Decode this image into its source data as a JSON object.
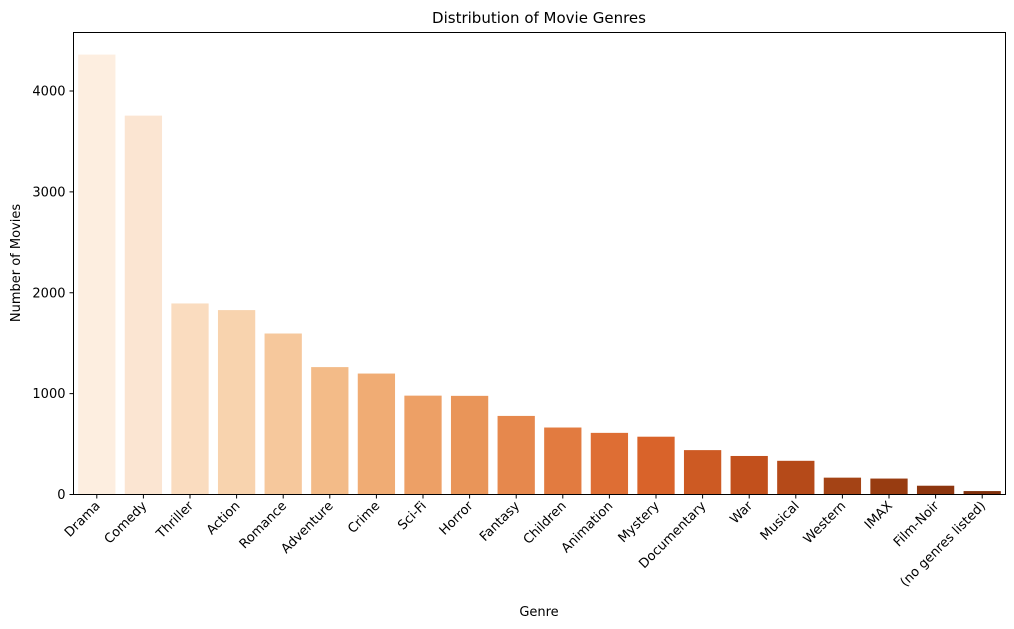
{
  "chart_data": {
    "type": "bar",
    "title": "Distribution of Movie Genres",
    "xlabel": "Genre",
    "ylabel": "Number of Movies",
    "ylim": [
      0,
      4580
    ],
    "yticks": [
      0,
      1000,
      2000,
      3000,
      4000
    ],
    "grid": false,
    "legend": "none",
    "palette": "Oranges",
    "categories": [
      "Drama",
      "Comedy",
      "Thriller",
      "Action",
      "Romance",
      "Adventure",
      "Crime",
      "Sci-Fi",
      "Horror",
      "Fantasy",
      "Children",
      "Animation",
      "Mystery",
      "Documentary",
      "War",
      "Musical",
      "Western",
      "IMAX",
      "Film-Noir",
      "(no genres listed)"
    ],
    "values": [
      4361,
      3756,
      1894,
      1828,
      1596,
      1263,
      1199,
      980,
      978,
      779,
      664,
      611,
      573,
      440,
      382,
      334,
      167,
      158,
      87,
      34
    ],
    "colors": [
      "#fdeee0",
      "#fbe5d2",
      "#fadcbf",
      "#f8d3ae",
      "#f6c89c",
      "#f3bb88",
      "#f0ac74",
      "#eda066",
      "#e99559",
      "#e6884d",
      "#e27b40",
      "#de6e34",
      "#d9632a",
      "#cd5a23",
      "#c2501c",
      "#b54a19",
      "#a44315",
      "#983c11",
      "#8d360f",
      "#80300c"
    ]
  }
}
